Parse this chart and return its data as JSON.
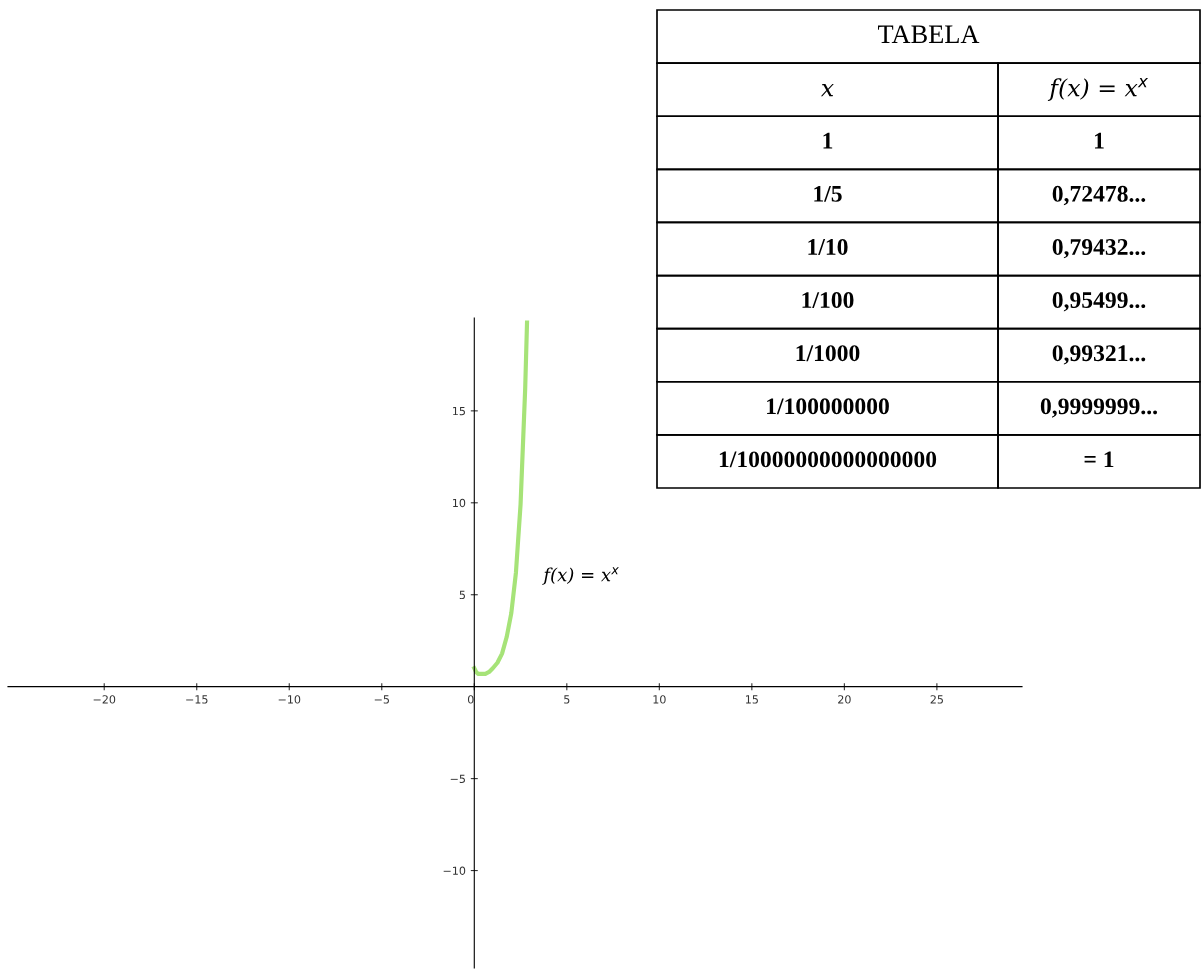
{
  "chart_data": [
    {
      "type": "line",
      "color": "#a6e378",
      "x": [
        0,
        0.1,
        0.2,
        0.4,
        0.6,
        0.8,
        1,
        1.25,
        1.5,
        1.75,
        2,
        2.25,
        2.5,
        2.75,
        2.85
      ],
      "values": [
        1,
        0.8,
        0.7,
        0.7,
        0.7,
        0.8,
        1,
        1.3,
        1.8,
        2.7,
        4,
        6.2,
        9.9,
        16.2,
        19.8
      ],
      "xlim": [
        -25.2,
        29.6
      ],
      "ylim": [
        -15.3,
        20.05
      ],
      "xticks": [
        {
          "value": -20,
          "label": "−20"
        },
        {
          "value": -15,
          "label": "−15"
        },
        {
          "value": -10,
          "label": "−10"
        },
        {
          "value": -5,
          "label": "−5"
        },
        0,
        5,
        10,
        15,
        20,
        25
      ],
      "yticks": [
        {
          "value": -10,
          "label": "−10"
        },
        {
          "value": -5,
          "label": "−5"
        },
        5,
        10,
        15
      ],
      "annotations": [
        "f(x) = x$^{x}$"
      ]
    },
    {
      "type": "other",
      "title": "TABELA",
      "categories": [
        "x",
        "f(x) = x$^{x}$"
      ],
      "annotations": [
        "1",
        "1",
        "1/5",
        "0,72478...",
        "1/10",
        "0,79432...",
        "1/100",
        "0,95499...",
        "1/1000",
        "0,99321...",
        "1/100000000",
        "0,9999999...",
        "1/10000000000000000",
        "= 1"
      ]
    }
  ]
}
